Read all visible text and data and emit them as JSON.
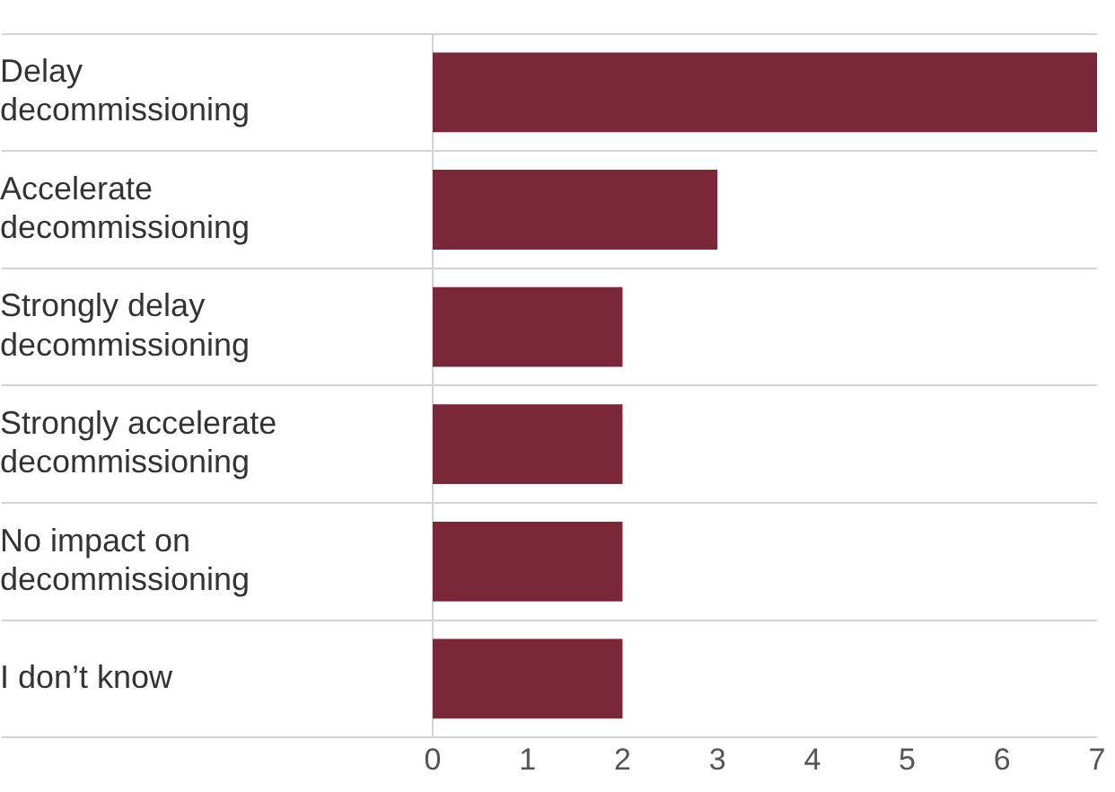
{
  "chart_data": {
    "type": "bar",
    "orientation": "horizontal",
    "categories": [
      "Delay decommissioning",
      "Accelerate decommissioning",
      "Strongly delay decommissioning",
      "Strongly accelerate decommissioning",
      "No impact on decommissioning",
      "I don’t know"
    ],
    "values": [
      7,
      3,
      2,
      2,
      2,
      2
    ],
    "color": "#7a2839",
    "xlim": [
      0,
      7
    ],
    "xticks": [
      0,
      1,
      2,
      3,
      4,
      5,
      6,
      7
    ],
    "grid": "y"
  }
}
